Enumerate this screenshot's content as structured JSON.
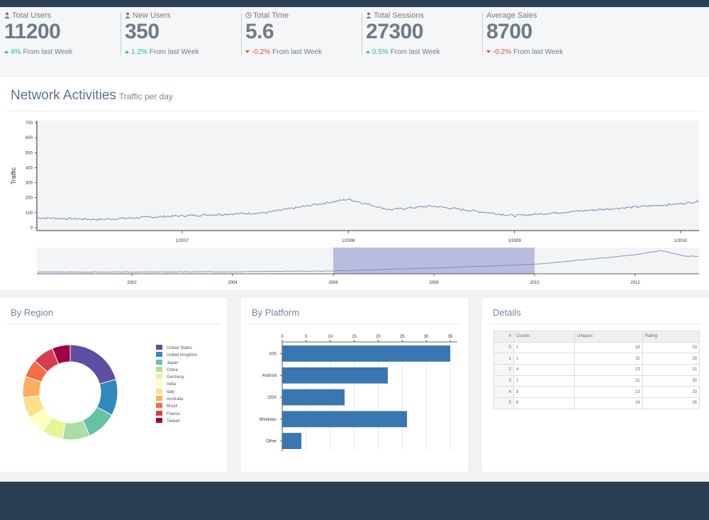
{
  "stats": [
    {
      "icon": "user-icon",
      "label": "Total Users",
      "value": "11200",
      "change": "4%",
      "direction": "up",
      "suffix": "From last Week"
    },
    {
      "icon": "user-icon",
      "label": "New Users",
      "value": "350",
      "change": "1.2%",
      "direction": "up",
      "suffix": "From last Week"
    },
    {
      "icon": "clock-icon",
      "label": "Total Time",
      "value": "5.6",
      "change": "-0.2%",
      "direction": "down",
      "suffix": "From last Week"
    },
    {
      "icon": "user-icon",
      "label": "Total Sessions",
      "value": "27300",
      "change": "0.5%",
      "direction": "up",
      "suffix": "From last Week"
    },
    {
      "icon": "",
      "label": "Average Sales",
      "value": "8700",
      "change": "-0.2%",
      "direction": "down",
      "suffix": "From last Week"
    }
  ],
  "network": {
    "title": "Network Activities",
    "subtitle": "Traffic per day"
  },
  "region": {
    "title": "By Region"
  },
  "platform": {
    "title": "By Platform"
  },
  "details": {
    "title": "Details",
    "columns": [
      "#",
      "Counts",
      "Uniques",
      "Rating"
    ],
    "rows": [
      [
        "0",
        "1",
        "18",
        "33"
      ],
      [
        "1",
        "1",
        "31",
        "29"
      ],
      [
        "2",
        "4",
        "23",
        "31"
      ],
      [
        "3",
        "1",
        "21",
        "30"
      ],
      [
        "4",
        "8",
        "13",
        "33"
      ],
      [
        "5",
        "8",
        "18",
        "26"
      ]
    ]
  },
  "colors": {
    "topbar": "#2a3f54",
    "line": "#6f8fb3",
    "bar": "#3a76b0",
    "brush": "#a7a9d6"
  },
  "chart_data": [
    {
      "type": "line",
      "name": "traffic-main",
      "ylabel": "Traffic",
      "ylim": [
        0,
        700
      ],
      "yticks": [
        "0",
        "100",
        "200",
        "300",
        "400",
        "500",
        "600",
        "700"
      ],
      "xticks": [
        "1/2007",
        "1/2008",
        "1/2009",
        "1/2010"
      ],
      "x": [
        "1/2006",
        "7/2006",
        "1/2007",
        "7/2007",
        "1/2008",
        "4/2008",
        "7/2008",
        "1/2009",
        "7/2009",
        "1/2010",
        "4/2010"
      ],
      "y": [
        70,
        55,
        80,
        100,
        190,
        120,
        145,
        80,
        120,
        160,
        195
      ]
    },
    {
      "type": "area",
      "name": "traffic-overview",
      "xticks": [
        "2002",
        "2004",
        "2006",
        "2008",
        "2010",
        "2012"
      ],
      "x": [
        2000,
        2002,
        2004,
        2006,
        2008,
        2010,
        2012,
        2012.5,
        2013
      ],
      "y": [
        5,
        5,
        10,
        20,
        60,
        110,
        240,
        300,
        220
      ],
      "brush": [
        2006,
        2010
      ]
    },
    {
      "type": "pie",
      "name": "by-region",
      "legend_position": "right",
      "labels": [
        "United States",
        "United Kingdom",
        "Japan",
        "China",
        "Germany",
        "India",
        "Italy",
        "Australia",
        "Brazil",
        "France",
        "Taiwan"
      ],
      "values": [
        20,
        12,
        10,
        9,
        7,
        6,
        7,
        7,
        6,
        7,
        6
      ],
      "colors": [
        "#5e4fa2",
        "#3288bd",
        "#66c2a5",
        "#abdda4",
        "#e6f598",
        "#ffffbf",
        "#fee08b",
        "#fdae61",
        "#f46d43",
        "#d53e4f",
        "#9e0142"
      ]
    },
    {
      "type": "bar",
      "name": "by-platform",
      "orientation": "horizontal",
      "categories": [
        "iOS",
        "Android",
        "OSX",
        "Windows",
        "Other"
      ],
      "values": [
        35,
        22,
        13,
        26,
        4
      ],
      "xlim": [
        0,
        35
      ],
      "xticks": [
        "0",
        "5",
        "10",
        "15",
        "20",
        "25",
        "30",
        "35"
      ]
    }
  ]
}
